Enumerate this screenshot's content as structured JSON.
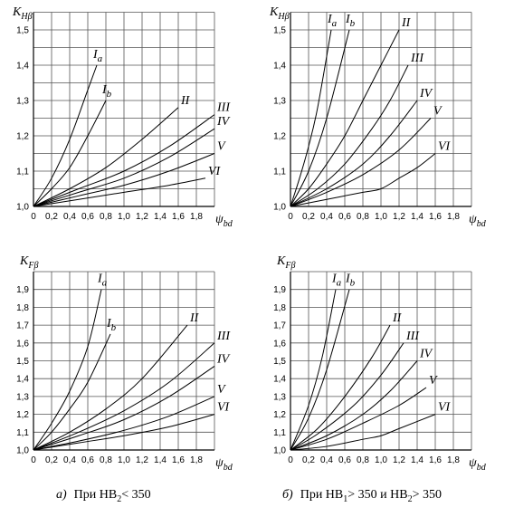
{
  "chart_data": [
    {
      "type": "line",
      "ylabel": "K",
      "ylabel_sub": "Hβ",
      "xlabel": "ψ",
      "xlabel_sub": "bd",
      "color": "#000000",
      "grid": true,
      "xlim": [
        0,
        2.0
      ],
      "ylim": [
        1.0,
        1.55
      ],
      "xticks": [
        0,
        {
          "value": 0.2,
          "label": "0,2"
        },
        {
          "value": 0.4,
          "label": "0,4"
        },
        {
          "value": 0.6,
          "label": "0,6"
        },
        {
          "value": 0.8,
          "label": "0,8"
        },
        {
          "value": 1.0,
          "label": "1,0"
        },
        {
          "value": 1.2,
          "label": "1,2"
        },
        {
          "value": 1.4,
          "label": "1,4"
        },
        {
          "value": 1.6,
          "label": "1,6"
        },
        {
          "value": 1.8,
          "label": "1,8"
        }
      ],
      "yticks": [
        {
          "value": 1.0,
          "label": "1,0"
        },
        {
          "value": 1.1,
          "label": "1,1"
        },
        {
          "value": 1.2,
          "label": "1,2"
        },
        {
          "value": 1.3,
          "label": "1,3"
        },
        {
          "value": 1.4,
          "label": "1,4"
        },
        {
          "value": 1.5,
          "label": "1,5"
        }
      ],
      "ygrid": [
        1.05,
        1.15,
        1.25,
        1.35,
        1.45
      ],
      "series": [
        {
          "name": "I",
          "sub": "a",
          "x": [
            0,
            0.2,
            0.4,
            0.6,
            0.7
          ],
          "values": [
            1.0,
            1.08,
            1.19,
            1.33,
            1.4
          ]
        },
        {
          "name": "I",
          "sub": "b",
          "x": [
            0,
            0.2,
            0.4,
            0.6,
            0.8
          ],
          "values": [
            1.0,
            1.05,
            1.11,
            1.2,
            1.3
          ]
        },
        {
          "name": "II",
          "x": [
            0,
            0.4,
            0.8,
            1.2,
            1.6
          ],
          "values": [
            1.0,
            1.05,
            1.11,
            1.19,
            1.28
          ]
        },
        {
          "name": "III",
          "x": [
            0,
            0.5,
            1.0,
            1.5,
            2.0
          ],
          "values": [
            1.0,
            1.05,
            1.1,
            1.17,
            1.26
          ]
        },
        {
          "name": "IV",
          "x": [
            0,
            0.5,
            1.0,
            1.5,
            2.0
          ],
          "values": [
            1.0,
            1.04,
            1.08,
            1.14,
            1.22
          ]
        },
        {
          "name": "V",
          "x": [
            0,
            0.5,
            1.0,
            1.5,
            2.0
          ],
          "values": [
            1.0,
            1.03,
            1.06,
            1.1,
            1.15
          ]
        },
        {
          "name": "VI",
          "x": [
            0,
            0.5,
            1.0,
            1.5,
            1.9
          ],
          "values": [
            1.0,
            1.02,
            1.04,
            1.06,
            1.08
          ]
        }
      ]
    },
    {
      "type": "line",
      "ylabel": "K",
      "ylabel_sub": "Hβ",
      "xlabel": "ψ",
      "xlabel_sub": "bd",
      "color": "#000000",
      "grid": true,
      "xlim": [
        0,
        2.0
      ],
      "ylim": [
        1.0,
        1.55
      ],
      "xticks": [
        0,
        {
          "value": 0.2,
          "label": "0,2"
        },
        {
          "value": 0.4,
          "label": "0,4"
        },
        {
          "value": 0.6,
          "label": "0,6"
        },
        {
          "value": 0.8,
          "label": "0,8"
        },
        {
          "value": 1.0,
          "label": "1,0"
        },
        {
          "value": 1.2,
          "label": "1,2"
        },
        {
          "value": 1.4,
          "label": "1,4"
        },
        {
          "value": 1.6,
          "label": "1,6"
        },
        {
          "value": 1.8,
          "label": "1,8"
        }
      ],
      "yticks": [
        {
          "value": 1.0,
          "label": "1,0"
        },
        {
          "value": 1.1,
          "label": "1,1"
        },
        {
          "value": 1.2,
          "label": "1,2"
        },
        {
          "value": 1.3,
          "label": "1,3"
        },
        {
          "value": 1.4,
          "label": "1,4"
        },
        {
          "value": 1.5,
          "label": "1,5"
        }
      ],
      "ygrid": [
        1.05,
        1.15,
        1.25,
        1.35,
        1.45
      ],
      "series": [
        {
          "name": "I",
          "sub": "a",
          "x": [
            0,
            0.1,
            0.2,
            0.3,
            0.45
          ],
          "values": [
            1.0,
            1.08,
            1.17,
            1.28,
            1.5
          ]
        },
        {
          "name": "I",
          "sub": "b",
          "x": [
            0,
            0.2,
            0.4,
            0.65
          ],
          "values": [
            1.0,
            1.1,
            1.25,
            1.5
          ]
        },
        {
          "name": "II",
          "x": [
            0,
            0.2,
            0.4,
            0.6,
            0.8,
            1.0,
            1.2
          ],
          "values": [
            1.0,
            1.05,
            1.12,
            1.2,
            1.3,
            1.4,
            1.5
          ]
        },
        {
          "name": "III",
          "x": [
            0,
            0.3,
            0.6,
            0.9,
            1.1,
            1.3
          ],
          "values": [
            1.0,
            1.05,
            1.12,
            1.22,
            1.3,
            1.4
          ]
        },
        {
          "name": "IV",
          "x": [
            0,
            0.4,
            0.8,
            1.1,
            1.4
          ],
          "values": [
            1.0,
            1.05,
            1.12,
            1.2,
            1.3
          ]
        },
        {
          "name": "V",
          "x": [
            0,
            0.4,
            0.8,
            1.2,
            1.55
          ],
          "values": [
            1.0,
            1.04,
            1.09,
            1.16,
            1.25
          ]
        },
        {
          "name": "VI",
          "x": [
            0,
            0.4,
            0.8,
            1.0,
            1.2,
            1.4,
            1.6
          ],
          "values": [
            1.0,
            1.02,
            1.04,
            1.05,
            1.08,
            1.11,
            1.15
          ]
        }
      ]
    },
    {
      "type": "line",
      "ylabel": "K",
      "ylabel_sub": "Fβ",
      "xlabel": "ψ",
      "xlabel_sub": "bd",
      "color": "#000000",
      "grid": true,
      "xlim": [
        0,
        2.0
      ],
      "ylim": [
        1.0,
        2.0
      ],
      "xticks": [
        0,
        {
          "value": 0.2,
          "label": "0,2"
        },
        {
          "value": 0.4,
          "label": "0,4"
        },
        {
          "value": 0.6,
          "label": "0,6"
        },
        {
          "value": 0.8,
          "label": "0,8"
        },
        {
          "value": 1.0,
          "label": "1,0"
        },
        {
          "value": 1.2,
          "label": "1,2"
        },
        {
          "value": 1.4,
          "label": "1,4"
        },
        {
          "value": 1.6,
          "label": "1,6"
        },
        {
          "value": 1.8,
          "label": "1,8"
        }
      ],
      "yticks": [
        {
          "value": 1.0,
          "label": "1,0"
        },
        {
          "value": 1.1,
          "label": "1,1"
        },
        {
          "value": 1.2,
          "label": "1,2"
        },
        {
          "value": 1.3,
          "label": "1,3"
        },
        {
          "value": 1.4,
          "label": "1,4"
        },
        {
          "value": 1.5,
          "label": "1,5"
        },
        {
          "value": 1.6,
          "label": "1,6"
        },
        {
          "value": 1.7,
          "label": "1,7"
        },
        {
          "value": 1.8,
          "label": "1,8"
        },
        {
          "value": 1.9,
          "label": "1,9"
        }
      ],
      "ygrid": [],
      "series": [
        {
          "name": "I",
          "sub": "a",
          "x": [
            0,
            0.2,
            0.4,
            0.6,
            0.75
          ],
          "values": [
            1.0,
            1.15,
            1.33,
            1.58,
            1.9
          ]
        },
        {
          "name": "I",
          "sub": "b",
          "x": [
            0,
            0.2,
            0.4,
            0.6,
            0.85
          ],
          "values": [
            1.0,
            1.1,
            1.23,
            1.38,
            1.65
          ]
        },
        {
          "name": "II",
          "x": [
            0,
            0.4,
            0.8,
            1.2,
            1.7
          ],
          "values": [
            1.0,
            1.1,
            1.23,
            1.4,
            1.7
          ]
        },
        {
          "name": "III",
          "x": [
            0,
            0.5,
            1.0,
            1.5,
            2.0
          ],
          "values": [
            1.0,
            1.1,
            1.22,
            1.38,
            1.6
          ]
        },
        {
          "name": "IV",
          "x": [
            0,
            0.5,
            1.0,
            1.5,
            2.0
          ],
          "values": [
            1.0,
            1.08,
            1.17,
            1.3,
            1.47
          ]
        },
        {
          "name": "V",
          "x": [
            0,
            0.5,
            1.0,
            1.5,
            2.0
          ],
          "values": [
            1.0,
            1.05,
            1.11,
            1.19,
            1.3
          ]
        },
        {
          "name": "VI",
          "x": [
            0,
            0.5,
            1.0,
            1.5,
            2.0
          ],
          "values": [
            1.0,
            1.04,
            1.08,
            1.13,
            1.2
          ]
        }
      ]
    },
    {
      "type": "line",
      "ylabel": "K",
      "ylabel_sub": "Fβ",
      "xlabel": "ψ",
      "xlabel_sub": "bd",
      "color": "#000000",
      "grid": true,
      "xlim": [
        0,
        2.0
      ],
      "ylim": [
        1.0,
        2.0
      ],
      "xticks": [
        0,
        {
          "value": 0.2,
          "label": "0,2"
        },
        {
          "value": 0.4,
          "label": "0,4"
        },
        {
          "value": 0.6,
          "label": "0,6"
        },
        {
          "value": 0.8,
          "label": "0,8"
        },
        {
          "value": 1.0,
          "label": "1,0"
        },
        {
          "value": 1.2,
          "label": "1,2"
        },
        {
          "value": 1.4,
          "label": "1,4"
        },
        {
          "value": 1.6,
          "label": "1,6"
        },
        {
          "value": 1.8,
          "label": "1,8"
        }
      ],
      "yticks": [
        {
          "value": 1.0,
          "label": "1,0"
        },
        {
          "value": 1.1,
          "label": "1,1"
        },
        {
          "value": 1.2,
          "label": "1,2"
        },
        {
          "value": 1.3,
          "label": "1,3"
        },
        {
          "value": 1.4,
          "label": "1,4"
        },
        {
          "value": 1.5,
          "label": "1,5"
        },
        {
          "value": 1.6,
          "label": "1,6"
        },
        {
          "value": 1.7,
          "label": "1,7"
        },
        {
          "value": 1.8,
          "label": "1,8"
        },
        {
          "value": 1.9,
          "label": "1,9"
        }
      ],
      "ygrid": [],
      "series": [
        {
          "name": "I",
          "sub": "a",
          "x": [
            0,
            0.2,
            0.35,
            0.5
          ],
          "values": [
            1.0,
            1.25,
            1.52,
            1.9
          ]
        },
        {
          "name": "I",
          "sub": "b",
          "x": [
            0,
            0.2,
            0.4,
            0.65
          ],
          "values": [
            1.0,
            1.18,
            1.45,
            1.9
          ]
        },
        {
          "name": "II",
          "x": [
            0,
            0.3,
            0.6,
            0.9,
            1.1
          ],
          "values": [
            1.0,
            1.12,
            1.3,
            1.52,
            1.7
          ]
        },
        {
          "name": "III",
          "x": [
            0,
            0.3,
            0.7,
            1.0,
            1.25
          ],
          "values": [
            1.0,
            1.09,
            1.25,
            1.42,
            1.6
          ]
        },
        {
          "name": "IV",
          "x": [
            0,
            0.4,
            0.8,
            1.1,
            1.4
          ],
          "values": [
            1.0,
            1.08,
            1.2,
            1.33,
            1.5
          ]
        },
        {
          "name": "V",
          "x": [
            0,
            0.4,
            0.8,
            1.2,
            1.5
          ],
          "values": [
            1.0,
            1.06,
            1.15,
            1.25,
            1.35
          ]
        },
        {
          "name": "VI",
          "x": [
            0,
            0.4,
            0.8,
            1.0,
            1.2,
            1.6
          ],
          "values": [
            1.0,
            1.02,
            1.06,
            1.08,
            1.12,
            1.2
          ]
        }
      ]
    }
  ],
  "captions": [
    {
      "letter": "а)",
      "parts": [
        "При НВ",
        "2",
        "< 350"
      ]
    },
    {
      "letter": "б)",
      "parts": [
        "При НВ",
        "1",
        "> 350 и НВ",
        "2",
        "> 350"
      ]
    }
  ]
}
